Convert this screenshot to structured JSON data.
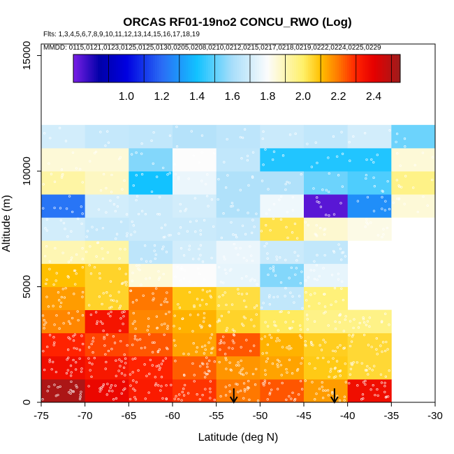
{
  "chart_data": {
    "type": "heatmap",
    "title": "ORCAS RF01-19no2 CONCU_RWO (Log)",
    "flights_text": "Flts: 1,3,4,5,6,7,8,9,10,11,12,13,14,15,16,17,18,19",
    "mmdd_text": "MMDD: 0115,0121,0123,0125,0125,0130,0205,0208,0210,0212,0215,0217,0218,0219,0222,0224,0225,0229",
    "xlabel": "Latitude (deg N)",
    "ylabel": "Altitude (m)",
    "xlim": [
      -75,
      -30
    ],
    "ylim": [
      0,
      15500
    ],
    "x_ticks": [
      -75,
      -70,
      -65,
      -60,
      -55,
      -50,
      -45,
      -40,
      -35,
      -30
    ],
    "x_tick_labels": [
      "-75",
      "-70",
      "-65",
      "-60",
      "-55",
      "-50",
      "-45",
      "-40",
      "-35",
      "-30"
    ],
    "y_ticks": [
      0,
      5000,
      10000,
      15000
    ],
    "y_tick_labels": [
      "0",
      "5000",
      "10000",
      "15000"
    ],
    "x_edges": [
      -75,
      -70,
      -65,
      -60,
      -55,
      -50,
      -45,
      -40,
      -35,
      -30
    ],
    "y_bin_height": 1000,
    "colorbar": {
      "min": 0.7,
      "max": 2.55,
      "ticks": [
        1.0,
        1.2,
        1.4,
        1.6,
        1.8,
        2.0,
        2.2,
        2.4
      ],
      "tick_labels": [
        "1.0",
        "1.2",
        "1.4",
        "1.6",
        "1.8",
        "2.0",
        "2.2",
        "2.4"
      ],
      "boundaries": [
        0.7,
        0.9,
        1.1,
        1.3,
        1.5,
        1.7,
        1.9,
        2.1,
        2.3,
        2.5
      ],
      "stops": [
        {
          "v": 0.7,
          "c": "#7a1fe6"
        },
        {
          "v": 0.85,
          "c": "#0000a8"
        },
        {
          "v": 1.0,
          "c": "#0000e0"
        },
        {
          "v": 1.2,
          "c": "#2a6cf5"
        },
        {
          "v": 1.4,
          "c": "#12c2ff"
        },
        {
          "v": 1.6,
          "c": "#a8defa"
        },
        {
          "v": 1.8,
          "c": "#fcfcfc"
        },
        {
          "v": 2.0,
          "c": "#fff06a"
        },
        {
          "v": 2.1,
          "c": "#ffc000"
        },
        {
          "v": 2.2,
          "c": "#ff7800"
        },
        {
          "v": 2.3,
          "c": "#ff2200"
        },
        {
          "v": 2.4,
          "c": "#e60000"
        },
        {
          "v": 2.55,
          "c": "#9e1c1c"
        }
      ]
    },
    "cells": [
      [
        2.52,
        2.38,
        2.32,
        2.28,
        2.2,
        2.24,
        2.15,
        2.36
      ],
      [
        2.36,
        2.33,
        2.3,
        2.23,
        2.16,
        2.14,
        2.08,
        2.05
      ],
      [
        2.3,
        2.26,
        2.24,
        2.14,
        2.24,
        2.12,
        2.07,
        2.05
      ],
      [
        2.18,
        2.34,
        2.18,
        2.12,
        2.06,
        2.01,
        1.96,
        1.96
      ],
      [
        2.15,
        2.06,
        2.2,
        2.08,
        2.04,
        1.66,
        1.98
      ],
      [
        2.1,
        2.06,
        1.85,
        1.8,
        1.75,
        1.55,
        1.75
      ],
      [
        1.9,
        1.92,
        1.65,
        1.7,
        1.76,
        1.68,
        1.66
      ],
      [
        1.7,
        1.67,
        1.68,
        1.68,
        1.67,
        2.03,
        1.86,
        1.83
      ],
      [
        1.22,
        1.7,
        1.68,
        1.7,
        1.62,
        1.77,
        0.74,
        1.28,
        1.85
      ],
      [
        1.92,
        1.88,
        1.4,
        1.76,
        1.62,
        1.62,
        1.52,
        1.48,
        1.96
      ],
      [
        1.85,
        1.85,
        1.55,
        1.8,
        1.66,
        1.42,
        1.42,
        1.42,
        1.85
      ],
      [
        1.7,
        1.67,
        1.66,
        1.63,
        1.65,
        1.68,
        1.66,
        1.7,
        1.52
      ]
    ],
    "annotations": [
      {
        "type": "arrow",
        "lat": -53,
        "label": ""
      },
      {
        "type": "arrow",
        "lat": -41.5,
        "label": ""
      }
    ]
  }
}
